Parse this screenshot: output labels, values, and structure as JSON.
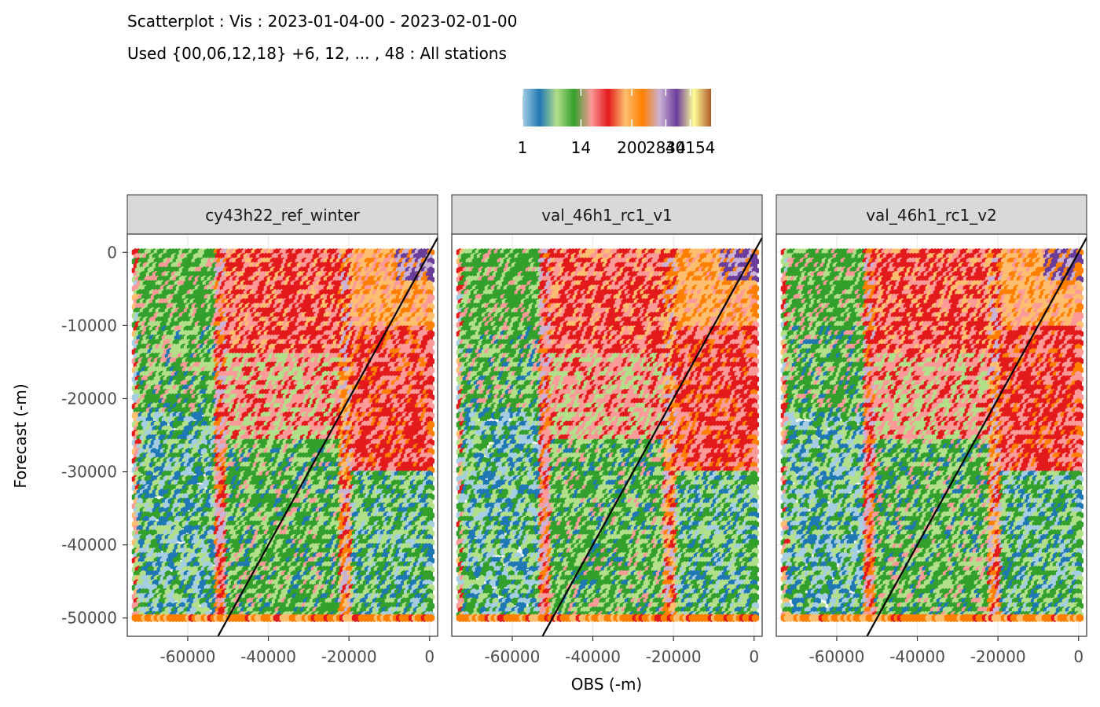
{
  "chart_data": {
    "type": "heatmap",
    "subtype": "hexbin-scatter",
    "title": "Scatterplot : Vis : 2023-01-04-00 - 2023-02-01-00",
    "subtitle": "Used {00,06,12,18} +6, 12, ... , 48 : All stations",
    "xlabel": "OBS (-m)",
    "ylabel": "Forecast (-m)",
    "xlim": [
      -75000,
      2000
    ],
    "ylim": [
      -52500,
      2500
    ],
    "x_ticks": [
      -60000,
      -40000,
      -20000,
      0
    ],
    "x_tick_labels": [
      "-60000",
      "-40000",
      "-20000",
      "0"
    ],
    "y_ticks": [
      0,
      -10000,
      -20000,
      -30000,
      -40000,
      -50000
    ],
    "y_tick_labels": [
      "0",
      "-10000",
      "-20000",
      "-30000",
      "-40000",
      "-50000"
    ],
    "grid": true,
    "reference_line": {
      "slope": 1,
      "intercept": 0
    },
    "legend": {
      "title": "",
      "placement": "top",
      "tick_labels": [
        "1",
        "14",
        "200",
        "2834",
        "40154"
      ],
      "colors": [
        "#a6cee3",
        "#1f78b4",
        "#b2df8a",
        "#33a02c",
        "#fb9a99",
        "#e31a1c",
        "#fdbf6f",
        "#ff7f00",
        "#cab2d6",
        "#6a3d9a",
        "#ffff99",
        "#b15928"
      ]
    },
    "panels": [
      {
        "name": "cy43h22_ref_winter",
        "seed": 11
      },
      {
        "name": "val_46h1_rc1_v1",
        "seed": 29
      },
      {
        "name": "val_46h1_rc1_v2",
        "seed": 47
      }
    ]
  }
}
